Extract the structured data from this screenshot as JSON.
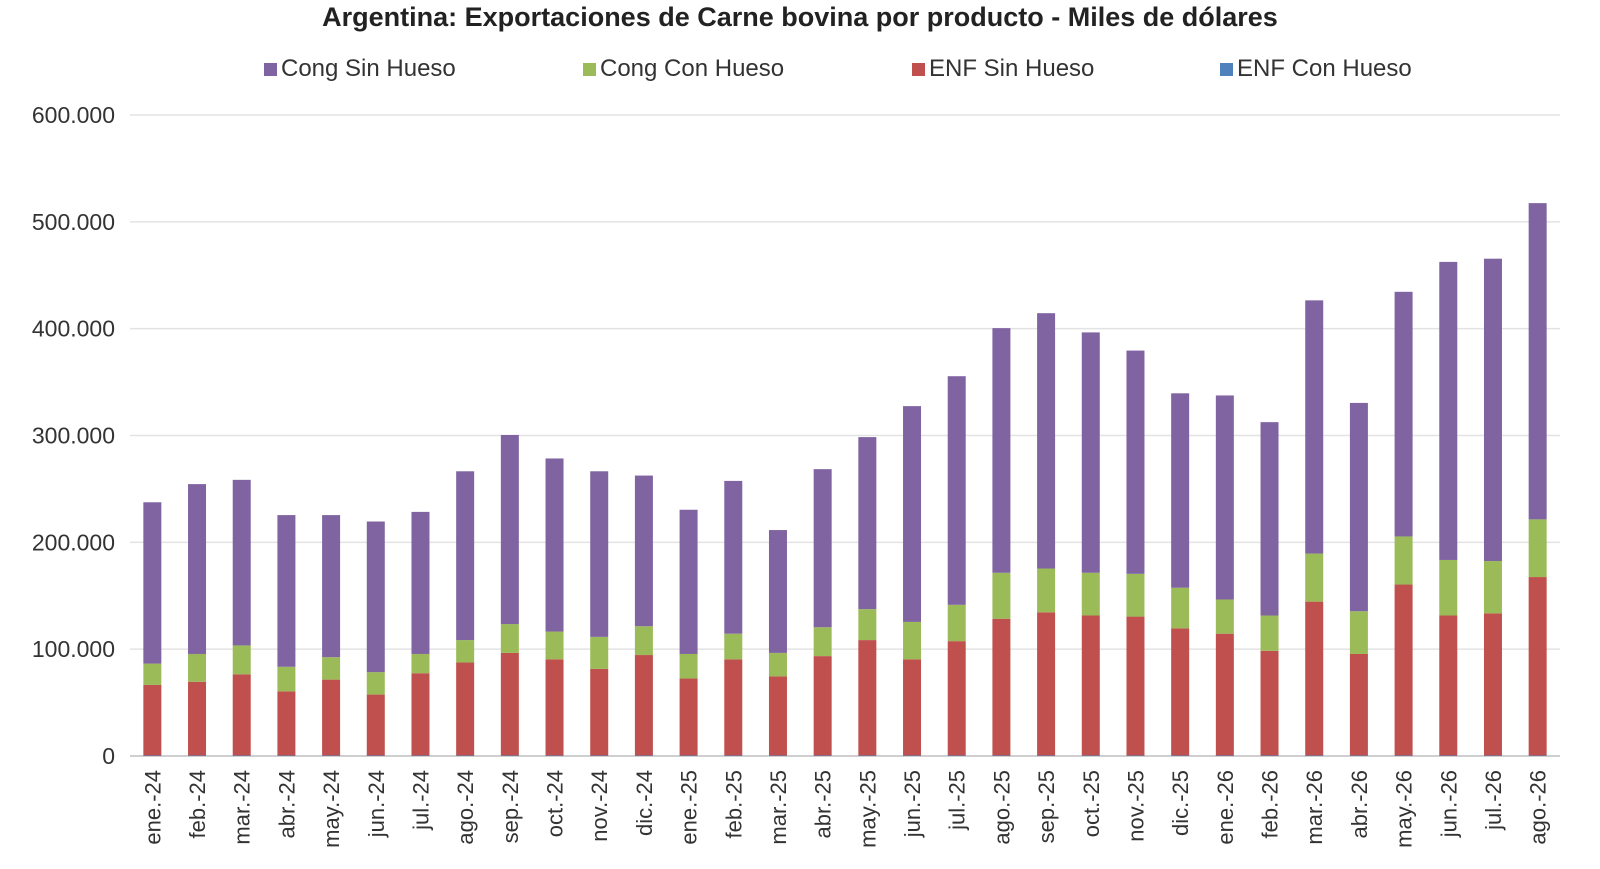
{
  "chart_data": {
    "type": "bar",
    "stacked": true,
    "title": "Argentina: Exportaciones de Carne bovina por producto - Miles de dólares",
    "xlabel": "",
    "ylabel": "",
    "ylim": [
      0,
      600000
    ],
    "yticks": [
      "0",
      "100.000",
      "200.000",
      "300.000",
      "400.000",
      "500.000",
      "600.000"
    ],
    "ytick_values": [
      0,
      100000,
      200000,
      300000,
      400000,
      500000,
      600000
    ],
    "grid": true,
    "legend_position": "top",
    "categories": [
      "ene.-24",
      "feb.-24",
      "mar.-24",
      "abr.-24",
      "may.-24",
      "jun.-24",
      "jul.-24",
      "ago.-24",
      "sep.-24",
      "oct.-24",
      "nov.-24",
      "dic.-24",
      "ene.-25",
      "feb.-25",
      "mar.-25",
      "abr.-25",
      "may.-25",
      "jun.-25",
      "jul.-25",
      "ago.-25",
      "sep.-25",
      "oct.-25",
      "nov.-25",
      "dic.-25",
      "ene.-26",
      "feb.-26",
      "mar.-26",
      "abr.-26",
      "may.-26",
      "jun.-26",
      "jul.-26",
      "ago.-26"
    ],
    "series": [
      {
        "name": "ENF Con Hueso",
        "color": "#4f81bd",
        "values": [
          500,
          500,
          500,
          500,
          500,
          500,
          500,
          500,
          500,
          500,
          500,
          500,
          500,
          500,
          500,
          500,
          500,
          500,
          500,
          500,
          500,
          500,
          500,
          500,
          500,
          500,
          500,
          500,
          500,
          500,
          500,
          500
        ]
      },
      {
        "name": "ENF Sin Hueso",
        "color": "#c0504d",
        "values": [
          66000,
          69000,
          76000,
          60000,
          71000,
          57000,
          77000,
          87000,
          96000,
          90000,
          81000,
          94000,
          72000,
          90000,
          74000,
          93000,
          108000,
          90000,
          107000,
          128000,
          134000,
          131000,
          130000,
          119000,
          114000,
          98000,
          144000,
          95000,
          160000,
          131000,
          133000,
          167000
        ]
      },
      {
        "name": "Cong Con Hueso",
        "color": "#9bbb59",
        "values": [
          20000,
          26000,
          27000,
          23000,
          21000,
          21000,
          18000,
          21000,
          27000,
          26000,
          30000,
          27000,
          23000,
          24000,
          22000,
          27000,
          29000,
          35000,
          34000,
          43000,
          41000,
          40000,
          40000,
          38000,
          32000,
          33000,
          45000,
          40000,
          45000,
          52000,
          49000,
          54000
        ]
      },
      {
        "name": "Cong Sin Hueso",
        "color": "#8064a2",
        "values": [
          151000,
          159000,
          155000,
          142000,
          133000,
          141000,
          133000,
          158000,
          177000,
          162000,
          155000,
          141000,
          135000,
          143000,
          115000,
          148000,
          161000,
          202000,
          214000,
          229000,
          239000,
          225000,
          209000,
          182000,
          191000,
          181000,
          237000,
          195000,
          229000,
          279000,
          283000,
          296000
        ]
      }
    ]
  },
  "legend": {
    "order": [
      "Cong Sin Hueso",
      "Cong Con Hueso",
      "ENF Sin Hueso",
      "ENF Con Hueso"
    ],
    "colors": [
      "#8064a2",
      "#9bbb59",
      "#c0504d",
      "#4f81bd"
    ]
  }
}
